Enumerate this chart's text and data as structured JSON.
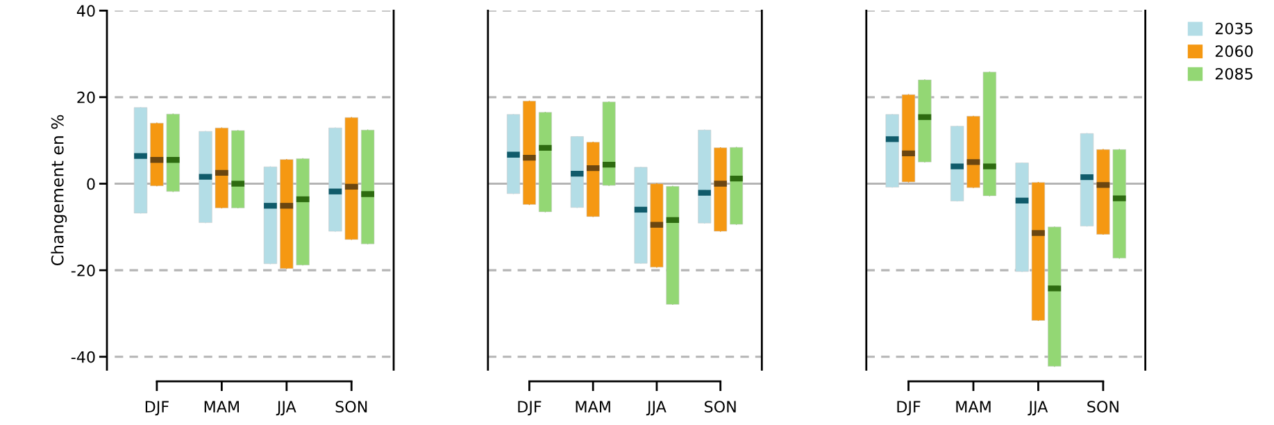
{
  "chart_data": [
    {
      "type": "box",
      "ylabel": "Changement en %",
      "categories": [
        "DJF",
        "MAM",
        "JJA",
        "SON"
      ],
      "ylim": [
        -43,
        40
      ],
      "yticks": [
        -40,
        -20,
        0,
        20,
        40
      ],
      "grid": "y",
      "ref_lines": [
        {
          "axis": "y",
          "value": 0,
          "color": "#b4b4b4"
        }
      ],
      "legend": "top right",
      "series": [
        {
          "name": "2035",
          "color": "#b3dde6",
          "boxes": [
            {
              "low": -6.8,
              "q1": -6.8,
              "median": 6.4,
              "q3": 17.6,
              "high": 17.6
            },
            {
              "low": -9.0,
              "q1": -9.0,
              "median": 1.6,
              "q3": 12.1,
              "high": 12.1
            },
            {
              "low": -18.5,
              "q1": -18.5,
              "median": -5.1,
              "q3": 3.9,
              "high": 3.9
            },
            {
              "low": -11.0,
              "q1": -11.0,
              "median": -1.8,
              "q3": 12.9,
              "high": 12.9
            }
          ]
        },
        {
          "name": "2060",
          "color": "#f59812",
          "boxes": [
            {
              "low": -0.5,
              "q1": -0.5,
              "median": 5.5,
              "q3": 14.0,
              "high": 14.0
            },
            {
              "low": -5.6,
              "q1": -5.6,
              "median": 2.5,
              "q3": 12.9,
              "high": 12.9
            },
            {
              "low": -19.6,
              "q1": -19.6,
              "median": -5.1,
              "q3": 5.6,
              "high": 5.6
            },
            {
              "low": -12.9,
              "q1": -12.9,
              "median": -0.7,
              "q3": 15.3,
              "high": 15.3
            }
          ]
        },
        {
          "name": "2085",
          "color": "#93d774",
          "boxes": [
            {
              "low": -1.8,
              "q1": -1.8,
              "median": 5.5,
              "q3": 16.1,
              "high": 16.1
            },
            {
              "low": -5.6,
              "q1": -5.6,
              "median": 0,
              "q3": 12.3,
              "high": 12.3
            },
            {
              "low": -18.8,
              "q1": -18.8,
              "median": -3.6,
              "q3": 5.8,
              "high": 5.8
            },
            {
              "low": -13.9,
              "q1": -13.9,
              "median": -2.4,
              "q3": 12.4,
              "high": 12.4
            }
          ]
        }
      ]
    },
    {
      "type": "box",
      "categories": [
        "DJF",
        "MAM",
        "JJA",
        "SON"
      ],
      "ylim": [
        -43,
        40
      ],
      "yticks": [
        -40,
        -20,
        0,
        20,
        40
      ],
      "tick_labels": "x",
      "grid": "y",
      "ref_lines": [
        {
          "axis": "y",
          "value": 0,
          "color": "#b4b4b4"
        }
      ],
      "series": [
        {
          "name": "2035",
          "color": "#b3dde6",
          "boxes": [
            {
              "low": -2.3,
              "q1": -2.3,
              "median": 6.7,
              "q3": 16.0,
              "high": 16.0
            },
            {
              "low": -5.5,
              "q1": -5.5,
              "median": 2.3,
              "q3": 10.9,
              "high": 10.9
            },
            {
              "low": -18.4,
              "q1": -18.4,
              "median": -6.0,
              "q3": 3.8,
              "high": 3.8
            },
            {
              "low": -9.1,
              "q1": -9.1,
              "median": -2.1,
              "q3": 12.4,
              "high": 12.4
            }
          ]
        },
        {
          "name": "2060",
          "color": "#f59812",
          "boxes": [
            {
              "low": -4.8,
              "q1": -4.8,
              "median": 6.0,
              "q3": 19.1,
              "high": 19.1
            },
            {
              "low": -7.6,
              "q1": -7.6,
              "median": 3.6,
              "q3": 9.6,
              "high": 9.6
            },
            {
              "low": -19.3,
              "q1": -19.3,
              "median": -9.5,
              "q3": 0,
              "high": 0
            },
            {
              "low": -11.0,
              "q1": -11.0,
              "median": 0,
              "q3": 8.3,
              "high": 8.3
            }
          ]
        },
        {
          "name": "2085",
          "color": "#93d774",
          "boxes": [
            {
              "low": -6.5,
              "q1": -6.5,
              "median": 8.3,
              "q3": 16.5,
              "high": 16.5
            },
            {
              "low": -0.4,
              "q1": -0.4,
              "median": 4.4,
              "q3": 18.9,
              "high": 18.9
            },
            {
              "low": -27.9,
              "q1": -27.9,
              "median": -8.4,
              "q3": -0.6,
              "high": -0.6
            },
            {
              "low": -9.4,
              "q1": -9.4,
              "median": 1.2,
              "q3": 8.4,
              "high": 8.4
            }
          ]
        }
      ]
    },
    {
      "type": "box",
      "categories": [
        "DJF",
        "MAM",
        "JJA",
        "SON"
      ],
      "ylim": [
        -43,
        40
      ],
      "yticks": [
        -40,
        -20,
        0,
        20,
        40
      ],
      "tick_labels": "x",
      "grid": "y",
      "ref_lines": [
        {
          "axis": "y",
          "value": 0,
          "color": "#b4b4b4"
        }
      ],
      "series": [
        {
          "name": "2035",
          "color": "#b3dde6",
          "boxes": [
            {
              "low": -0.8,
              "q1": -0.8,
              "median": 10.3,
              "q3": 16.0,
              "high": 16.0
            },
            {
              "low": -4.0,
              "q1": -4.0,
              "median": 4.0,
              "q3": 13.3,
              "high": 13.3
            },
            {
              "low": -20.3,
              "q1": -20.3,
              "median": -3.9,
              "q3": 4.8,
              "high": 4.8
            },
            {
              "low": -9.8,
              "q1": -9.8,
              "median": 1.5,
              "q3": 11.6,
              "high": 11.6
            }
          ]
        },
        {
          "name": "2060",
          "color": "#f59812",
          "boxes": [
            {
              "low": 0.4,
              "q1": 0.4,
              "median": 7.0,
              "q3": 20.6,
              "high": 20.6
            },
            {
              "low": -0.9,
              "q1": -0.9,
              "median": 5.0,
              "q3": 15.6,
              "high": 15.6
            },
            {
              "low": -31.6,
              "q1": -31.6,
              "median": -11.4,
              "q3": 0.3,
              "high": 0.3
            },
            {
              "low": -11.7,
              "q1": -11.7,
              "median": -0.3,
              "q3": 7.9,
              "high": 7.9
            }
          ]
        },
        {
          "name": "2085",
          "color": "#93d774",
          "boxes": [
            {
              "low": 5.0,
              "q1": 5.0,
              "median": 15.4,
              "q3": 24.0,
              "high": 24.0
            },
            {
              "low": -2.8,
              "q1": -2.8,
              "median": 4.0,
              "q3": 25.8,
              "high": 25.8
            },
            {
              "low": -42.2,
              "q1": -42.2,
              "median": -24.2,
              "q3": -10.0,
              "high": -10.0
            },
            {
              "low": -17.2,
              "q1": -17.2,
              "median": -3.4,
              "q3": 7.9,
              "high": 7.9
            }
          ]
        }
      ]
    }
  ]
}
